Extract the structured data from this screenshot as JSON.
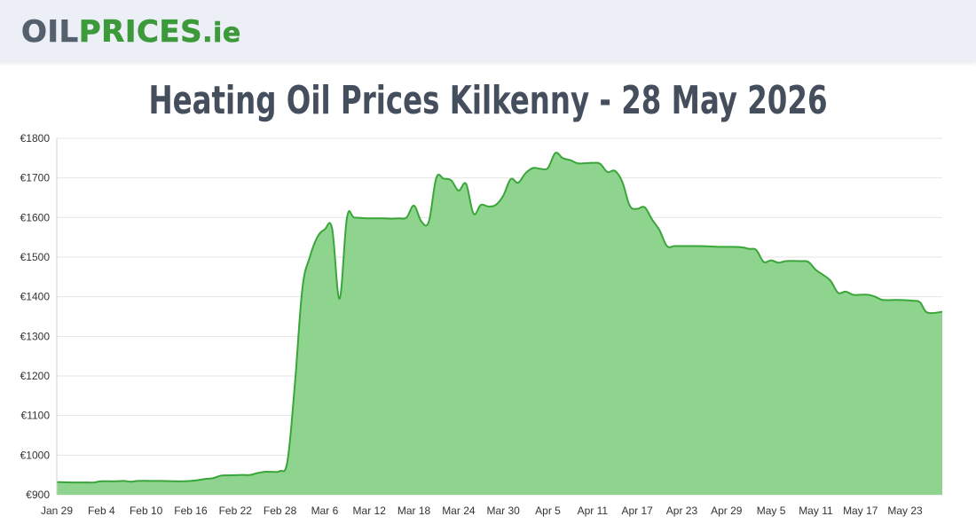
{
  "header": {
    "logo_oil": "OIL",
    "logo_prices": "PRICES",
    "logo_tld": ".ie"
  },
  "page_title": "Heating Oil Prices Kilkenny - 28 May 2026",
  "colors": {
    "fill": "#8fd48e",
    "line": "#3aa63a",
    "grid": "#e4e4e4",
    "header_bg": "#eceff6"
  },
  "chart_data": {
    "type": "area",
    "title": "",
    "xlabel": "",
    "ylabel": "",
    "ylim": [
      900,
      1800
    ],
    "y_ticks": [
      "€900",
      "€1000",
      "€1100",
      "€1200",
      "€1300",
      "€1400",
      "€1500",
      "€1600",
      "€1700",
      "€1800"
    ],
    "y_tick_values": [
      900,
      1000,
      1100,
      1200,
      1300,
      1400,
      1500,
      1600,
      1700,
      1800
    ],
    "x_ticks": [
      "Jan 29",
      "Feb 4",
      "Feb 10",
      "Feb 16",
      "Feb 22",
      "Feb 28",
      "Mar 6",
      "Mar 12",
      "Mar 18",
      "Mar 24",
      "Mar 30",
      "Apr 5",
      "Apr 11",
      "Apr 17",
      "Apr 23",
      "Apr 29",
      "May 5",
      "May 11",
      "May 17",
      "May 23"
    ],
    "x_tick_days": [
      0,
      6,
      12,
      18,
      24,
      30,
      36,
      42,
      48,
      54,
      60,
      66,
      72,
      78,
      84,
      90,
      96,
      102,
      108,
      114
    ],
    "x_domain_days": [
      0,
      119
    ],
    "grid": true,
    "legend": "none",
    "series": [
      {
        "points": [
          [
            0,
            932
          ],
          [
            2,
            931
          ],
          [
            4,
            931
          ],
          [
            5,
            931
          ],
          [
            6,
            934
          ],
          [
            8,
            934
          ],
          [
            9,
            935
          ],
          [
            10,
            933
          ],
          [
            11,
            935
          ],
          [
            13,
            935
          ],
          [
            14,
            935
          ],
          [
            16,
            934
          ],
          [
            17,
            934
          ],
          [
            18,
            935
          ],
          [
            19,
            937
          ],
          [
            20,
            940
          ],
          [
            21,
            942
          ],
          [
            22,
            948
          ],
          [
            23,
            949
          ],
          [
            25,
            950
          ],
          [
            26,
            950
          ],
          [
            27,
            955
          ],
          [
            28,
            958
          ],
          [
            29,
            958
          ],
          [
            30,
            960
          ],
          [
            31,
            985
          ],
          [
            32,
            1180
          ],
          [
            33,
            1420
          ],
          [
            34,
            1500
          ],
          [
            35,
            1550
          ],
          [
            36,
            1570
          ],
          [
            37,
            1572
          ],
          [
            38,
            1395
          ],
          [
            39,
            1600
          ],
          [
            40,
            1600
          ],
          [
            42,
            1598
          ],
          [
            44,
            1598
          ],
          [
            45,
            1597
          ],
          [
            46,
            1598
          ],
          [
            47,
            1600
          ],
          [
            48,
            1630
          ],
          [
            49,
            1590
          ],
          [
            50,
            1590
          ],
          [
            51,
            1700
          ],
          [
            52,
            1698
          ],
          [
            53,
            1694
          ],
          [
            54,
            1668
          ],
          [
            55,
            1685
          ],
          [
            56,
            1610
          ],
          [
            57,
            1632
          ],
          [
            58,
            1628
          ],
          [
            59,
            1632
          ],
          [
            60,
            1655
          ],
          [
            61,
            1697
          ],
          [
            62,
            1688
          ],
          [
            63,
            1712
          ],
          [
            64,
            1725
          ],
          [
            65,
            1723
          ],
          [
            66,
            1725
          ],
          [
            67,
            1763
          ],
          [
            68,
            1750
          ],
          [
            69,
            1745
          ],
          [
            70,
            1737
          ],
          [
            71,
            1737
          ],
          [
            72,
            1738
          ],
          [
            73,
            1736
          ],
          [
            74,
            1715
          ],
          [
            75,
            1718
          ],
          [
            76,
            1690
          ],
          [
            77,
            1630
          ],
          [
            78,
            1622
          ],
          [
            79,
            1626
          ],
          [
            80,
            1595
          ],
          [
            81,
            1568
          ],
          [
            82,
            1528
          ],
          [
            83,
            1528
          ],
          [
            84,
            1528
          ],
          [
            86,
            1528
          ],
          [
            88,
            1527
          ],
          [
            89,
            1526
          ],
          [
            90,
            1526
          ],
          [
            92,
            1525
          ],
          [
            93,
            1521
          ],
          [
            94,
            1518
          ],
          [
            95,
            1488
          ],
          [
            96,
            1492
          ],
          [
            97,
            1486
          ],
          [
            98,
            1490
          ],
          [
            100,
            1490
          ],
          [
            101,
            1488
          ],
          [
            102,
            1468
          ],
          [
            103,
            1455
          ],
          [
            104,
            1440
          ],
          [
            105,
            1410
          ],
          [
            106,
            1413
          ],
          [
            107,
            1405
          ],
          [
            108,
            1405
          ],
          [
            109,
            1405
          ],
          [
            110,
            1400
          ],
          [
            111,
            1392
          ],
          [
            113,
            1392
          ],
          [
            115,
            1390
          ],
          [
            116,
            1386
          ],
          [
            117,
            1360
          ],
          [
            119,
            1362
          ]
        ]
      }
    ]
  }
}
